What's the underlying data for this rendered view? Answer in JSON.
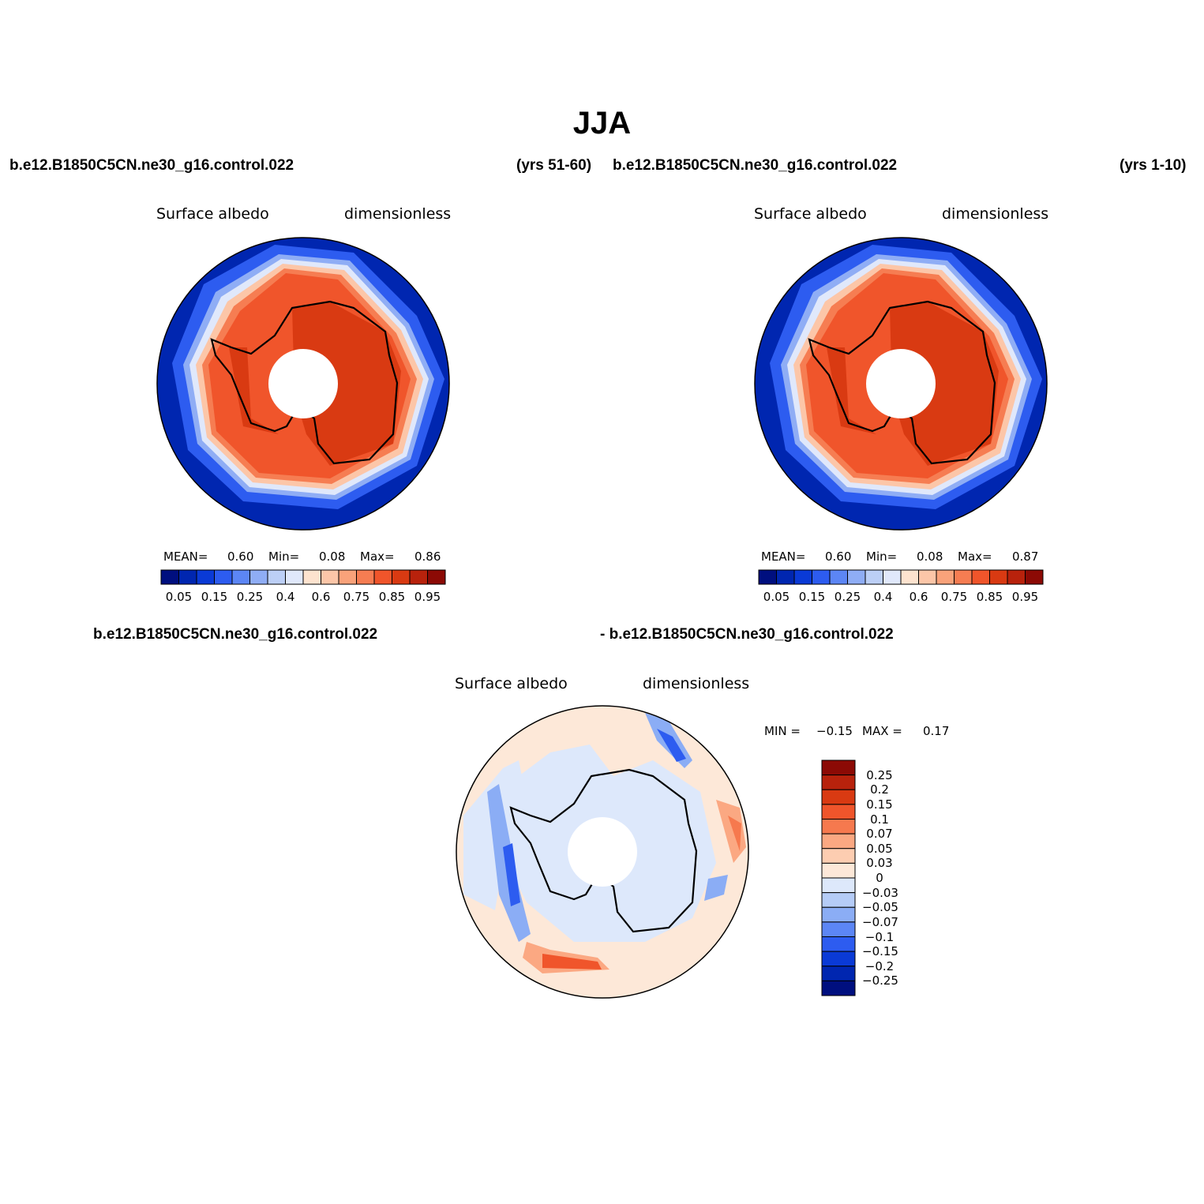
{
  "figure": {
    "title": "JJA"
  },
  "panels": [
    {
      "case_left": "b.e12.B1850C5CN.ne30_g16.control.022",
      "case_right": "(yrs 51-60)",
      "variable": "Surface albedo",
      "units": "dimensionless",
      "stats": {
        "mean_label": "MEAN=",
        "mean": "0.60",
        "min_label": "Min=",
        "min": "0.08",
        "max_label": "Max=",
        "max": "0.86"
      }
    },
    {
      "case_left": "b.e12.B1850C5CN.ne30_g16.control.022",
      "case_right": "(yrs 1-10)",
      "variable": "Surface albedo",
      "units": "dimensionless",
      "stats": {
        "mean_label": "MEAN=",
        "mean": "0.60",
        "min_label": "Min=",
        "min": "0.08",
        "max_label": "Max=",
        "max": "0.87"
      }
    }
  ],
  "diff": {
    "case_left": "b.e12.B1850C5CN.ne30_g16.control.022",
    "case_right": "- b.e12.B1850C5CN.ne30_g16.control.022",
    "variable": "Surface albedo",
    "units": "dimensionless",
    "stats": {
      "min_label": "MIN =",
      "min": "−0.15",
      "max_label": "MAX =",
      "max": "0.17"
    }
  },
  "colorbar_abs": {
    "colors": [
      "#000f7f",
      "#0026b0",
      "#0a3ad6",
      "#2d5cf0",
      "#5c86f5",
      "#8fadf5",
      "#bccff6",
      "#e0e8fb",
      "#fde3cf",
      "#fcc6a8",
      "#f9a27a",
      "#f67d52",
      "#f0552b",
      "#d93a12",
      "#b8220c",
      "#8c0a05"
    ],
    "labels": [
      "0.05",
      "0.15",
      "0.25",
      "0.4",
      "0.6",
      "0.75",
      "0.85",
      "0.95"
    ]
  },
  "colorbar_diff": {
    "colors": [
      "#8c0a05",
      "#b8220c",
      "#d93a12",
      "#f0552b",
      "#f6794e",
      "#fba882",
      "#fdcdb1",
      "#fde8d8",
      "#dde8fb",
      "#b5ccf7",
      "#8badf5",
      "#5c86f5",
      "#2d5cf0",
      "#0a3ad6",
      "#0026b0",
      "#000f7f"
    ],
    "labels": [
      "0.25",
      "0.2",
      "0.15",
      "0.1",
      "0.07",
      "0.05",
      "0.03",
      "0",
      "−0.03",
      "−0.05",
      "−0.07",
      "−0.1",
      "−0.15",
      "−0.2",
      "−0.25"
    ]
  }
}
